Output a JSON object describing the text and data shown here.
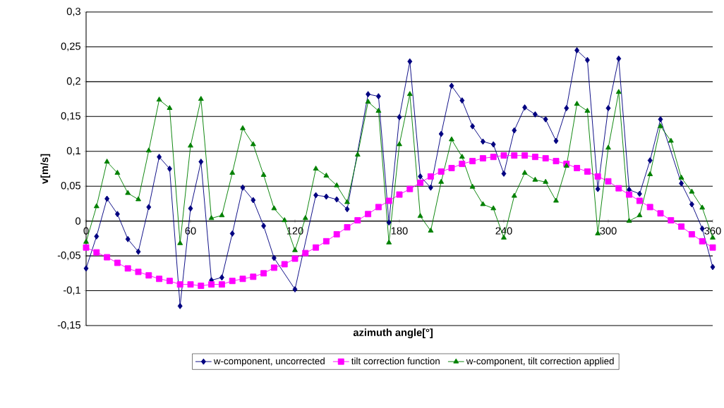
{
  "chart_data": {
    "type": "line",
    "xlabel": "azimuth angle[°]",
    "ylabel": "v[m/s]",
    "x": [
      0,
      6,
      12,
      18,
      24,
      30,
      36,
      42,
      48,
      54,
      60,
      66,
      72,
      78,
      84,
      90,
      96,
      102,
      108,
      114,
      120,
      126,
      132,
      138,
      144,
      150,
      156,
      162,
      168,
      174,
      180,
      186,
      192,
      198,
      204,
      210,
      216,
      222,
      228,
      234,
      240,
      246,
      252,
      258,
      264,
      270,
      276,
      282,
      288,
      294,
      300,
      306,
      312,
      318,
      324,
      330,
      336,
      342,
      348,
      354,
      360
    ],
    "series": [
      {
        "name": "w-component, uncorrected",
        "color": "#000080",
        "marker": "diamond",
        "values": [
          -0.068,
          -0.022,
          0.032,
          0.01,
          -0.026,
          -0.044,
          0.02,
          0.092,
          0.075,
          -0.122,
          0.018,
          0.085,
          -0.085,
          -0.081,
          -0.018,
          0.048,
          0.03,
          -0.007,
          -0.053,
          null,
          -0.098,
          null,
          0.037,
          0.035,
          0.031,
          0.017,
          null,
          0.182,
          0.179,
          -0.002,
          0.149,
          0.229,
          0.064,
          0.048,
          0.125,
          0.194,
          0.173,
          0.136,
          0.114,
          0.11,
          0.068,
          0.13,
          0.163,
          0.153,
          0.146,
          0.115,
          0.162,
          0.245,
          0.231,
          0.046,
          0.162,
          0.233,
          0.045,
          0.039,
          0.087,
          0.146,
          null,
          0.054,
          0.024,
          -0.011,
          -0.066
        ]
      },
      {
        "name": "tilt correction function",
        "color": "#ff00ff",
        "marker": "square",
        "values": [
          -0.038,
          -0.045,
          -0.052,
          -0.06,
          -0.068,
          -0.073,
          -0.078,
          -0.083,
          -0.086,
          -0.091,
          -0.091,
          -0.093,
          -0.091,
          -0.091,
          -0.086,
          -0.083,
          -0.08,
          -0.075,
          -0.067,
          -0.062,
          -0.054,
          -0.046,
          -0.038,
          -0.029,
          -0.019,
          -0.009,
          0.001,
          0.01,
          0.02,
          0.029,
          0.038,
          0.046,
          0.055,
          0.064,
          0.071,
          0.076,
          0.082,
          0.086,
          0.09,
          0.092,
          0.094,
          0.094,
          0.094,
          0.092,
          0.09,
          0.086,
          0.082,
          0.076,
          0.071,
          0.064,
          0.057,
          0.047,
          0.038,
          0.029,
          0.02,
          0.011,
          0.001,
          -0.008,
          -0.019,
          -0.029,
          -0.038
        ]
      },
      {
        "name": "w-component, tilt correction applied",
        "color": "#008000",
        "marker": "triangle",
        "values": [
          -0.03,
          0.021,
          0.085,
          0.069,
          0.04,
          0.031,
          0.101,
          0.174,
          0.162,
          -0.032,
          0.108,
          0.175,
          0.004,
          0.008,
          0.069,
          0.133,
          0.11,
          0.066,
          0.018,
          0.001,
          -0.042,
          0.004,
          0.075,
          0.065,
          0.051,
          0.027,
          0.095,
          0.171,
          0.158,
          -0.031,
          0.11,
          0.182,
          0.007,
          -0.014,
          0.056,
          0.117,
          0.092,
          0.049,
          0.024,
          0.018,
          -0.024,
          0.036,
          0.069,
          0.059,
          0.056,
          0.029,
          0.079,
          0.168,
          0.158,
          -0.018,
          0.105,
          0.185,
          0.0,
          0.008,
          0.067,
          0.136,
          0.115,
          0.062,
          0.042,
          0.019,
          -0.024
        ]
      }
    ],
    "xlim": [
      0,
      360
    ],
    "xticks": [
      0,
      60,
      120,
      180,
      240,
      300,
      360
    ],
    "ylim": [
      -0.15,
      0.3
    ],
    "yticks": [
      {
        "value": -0.15,
        "label": "-0,15"
      },
      {
        "value": -0.1,
        "label": "-0,1"
      },
      {
        "value": -0.05,
        "label": "-0,05"
      },
      0,
      {
        "value": 0.05,
        "label": "0,05"
      },
      {
        "value": 0.1,
        "label": "0,1"
      },
      {
        "value": 0.15,
        "label": "0,15"
      },
      {
        "value": 0.2,
        "label": "0,2"
      },
      {
        "value": 0.25,
        "label": "0,25"
      },
      {
        "value": 0.3,
        "label": "0,3"
      }
    ],
    "grid": "y",
    "legend": "bottom"
  }
}
